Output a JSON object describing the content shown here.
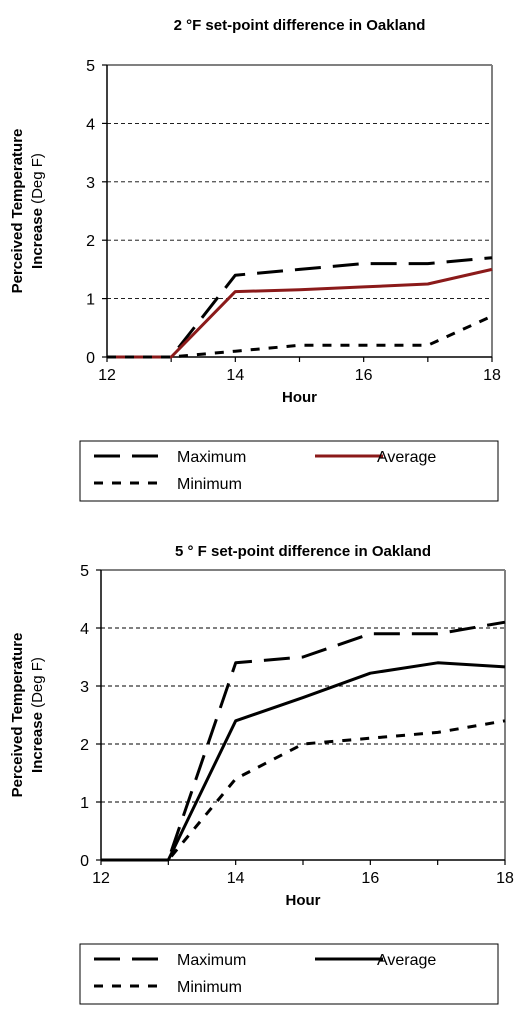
{
  "chart_data": [
    {
      "type": "line",
      "title": "2 °F set-point difference in Oakland",
      "xlabel": "Hour",
      "ylabel_bold": "Perceived Temperature Increase",
      "ylabel_unit": "(Deg F)",
      "xlim": [
        12,
        18
      ],
      "ylim": [
        0,
        5
      ],
      "x_ticks": [
        "12",
        "14",
        "16",
        "18"
      ],
      "y_ticks": [
        "0",
        "1",
        "2",
        "3",
        "4",
        "5"
      ],
      "grid": "horizontal dashed",
      "legend_position": "bottom",
      "series": [
        {
          "name": "Maximum",
          "color": "#000000",
          "style": "long-dash",
          "x": [
            12,
            13,
            14,
            15,
            16,
            17,
            18
          ],
          "y": [
            0,
            0,
            1.4,
            1.5,
            1.6,
            1.6,
            1.7
          ]
        },
        {
          "name": "Average",
          "color": "#8b1a1a",
          "style": "solid",
          "x": [
            12,
            13,
            14,
            15,
            16,
            17,
            18
          ],
          "y": [
            0,
            0,
            1.12,
            1.15,
            1.2,
            1.25,
            1.5
          ]
        },
        {
          "name": "Minimum",
          "color": "#000000",
          "style": "short-dash",
          "x": [
            12,
            13,
            14,
            15,
            16,
            17,
            18
          ],
          "y": [
            0,
            0,
            0.1,
            0.2,
            0.2,
            0.2,
            0.7
          ]
        }
      ]
    },
    {
      "type": "line",
      "title": "5 ° F set-point difference in Oakland",
      "xlabel": "Hour",
      "ylabel_bold": "Perceived Temperature Increase",
      "ylabel_unit": "(Deg F)",
      "xlim": [
        12,
        18
      ],
      "ylim": [
        0,
        5
      ],
      "x_ticks": [
        "12",
        "14",
        "16",
        "18"
      ],
      "y_ticks": [
        "0",
        "1",
        "2",
        "3",
        "4",
        "5"
      ],
      "grid": "horizontal dashed",
      "legend_position": "bottom",
      "series": [
        {
          "name": "Maximum",
          "color": "#000000",
          "style": "long-dash",
          "x": [
            12,
            13,
            14,
            15,
            16,
            17,
            18
          ],
          "y": [
            0,
            0,
            3.4,
            3.5,
            3.9,
            3.9,
            4.1
          ]
        },
        {
          "name": "Average",
          "color": "#000000",
          "style": "solid",
          "x": [
            12,
            13,
            14,
            15,
            16,
            17,
            18
          ],
          "y": [
            0,
            0,
            2.4,
            2.8,
            3.22,
            3.4,
            3.33
          ]
        },
        {
          "name": "Minimum",
          "color": "#000000",
          "style": "short-dash",
          "x": [
            12,
            13,
            14,
            15,
            16,
            17,
            18
          ],
          "y": [
            0,
            0,
            1.4,
            2.0,
            2.1,
            2.2,
            2.4
          ]
        }
      ]
    }
  ]
}
